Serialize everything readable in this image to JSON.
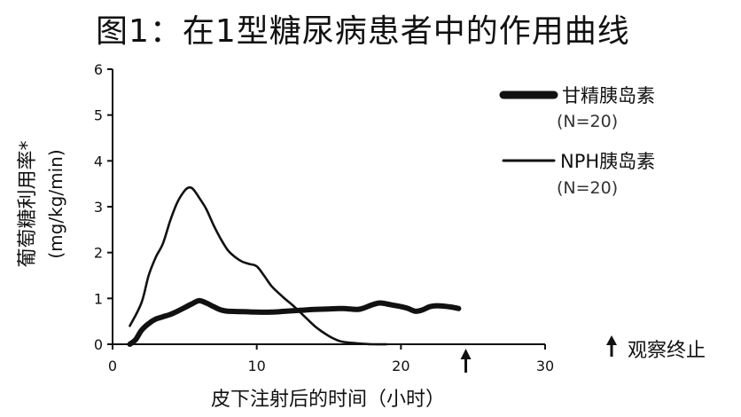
{
  "chart_data": {
    "type": "line",
    "title": "图1：在1型糖尿病患者中的作用曲线",
    "xlabel": "皮下注射后的时间（小时）",
    "ylabel": "葡萄糖利用率*",
    "ylabel_unit": "(mg/kg/min)",
    "xlim": [
      0,
      30
    ],
    "ylim": [
      0,
      6
    ],
    "x_ticks": [
      0,
      10,
      20,
      30
    ],
    "y_ticks": [
      0,
      1,
      2,
      3,
      4,
      5,
      6
    ],
    "x_tick_labels": [
      "0",
      "10",
      "20",
      "30"
    ],
    "y_tick_labels": [
      "0",
      "1",
      "2",
      "3",
      "4",
      "5",
      "6"
    ],
    "grid": false,
    "legend_position": "top-right",
    "series": [
      {
        "name": "甘精胰岛素",
        "sub": "(N=20)",
        "style": "thick",
        "x": [
          1.2,
          1.6,
          2,
          2.5,
          3,
          3.5,
          4,
          4.5,
          5,
          5.5,
          6,
          6.5,
          7,
          7.5,
          8,
          9,
          10,
          11,
          12,
          13,
          14,
          15,
          16,
          17,
          17.5,
          18,
          18.5,
          19,
          19.5,
          20,
          20.5,
          21,
          21.5,
          22,
          22.5,
          23,
          23.5,
          24
        ],
        "y": [
          0,
          0.1,
          0.3,
          0.45,
          0.55,
          0.6,
          0.65,
          0.72,
          0.8,
          0.88,
          0.95,
          0.9,
          0.82,
          0.75,
          0.72,
          0.71,
          0.7,
          0.7,
          0.72,
          0.74,
          0.76,
          0.77,
          0.78,
          0.76,
          0.8,
          0.86,
          0.9,
          0.88,
          0.85,
          0.82,
          0.78,
          0.72,
          0.75,
          0.82,
          0.84,
          0.83,
          0.81,
          0.78
        ]
      },
      {
        "name": "NPH胰岛素",
        "sub": "(N=20)",
        "style": "thin",
        "x": [
          1.2,
          2,
          2.5,
          3,
          3.5,
          4,
          4.5,
          5,
          5.3,
          5.6,
          6,
          6.5,
          7,
          7.5,
          8,
          8.5,
          9,
          9.5,
          10,
          10.5,
          11,
          11.5,
          12,
          12.5,
          13,
          13.5,
          14,
          14.5,
          15,
          15.5,
          16,
          17,
          18,
          19
        ],
        "y": [
          0.4,
          0.9,
          1.5,
          1.9,
          2.2,
          2.7,
          3.1,
          3.35,
          3.42,
          3.38,
          3.2,
          2.95,
          2.6,
          2.3,
          2.05,
          1.9,
          1.8,
          1.75,
          1.7,
          1.5,
          1.28,
          1.12,
          0.98,
          0.85,
          0.7,
          0.55,
          0.4,
          0.28,
          0.18,
          0.1,
          0.05,
          0.02,
          0,
          0
        ]
      }
    ],
    "annotation": {
      "arrow_x": 24.5,
      "text": "观察终止"
    }
  }
}
